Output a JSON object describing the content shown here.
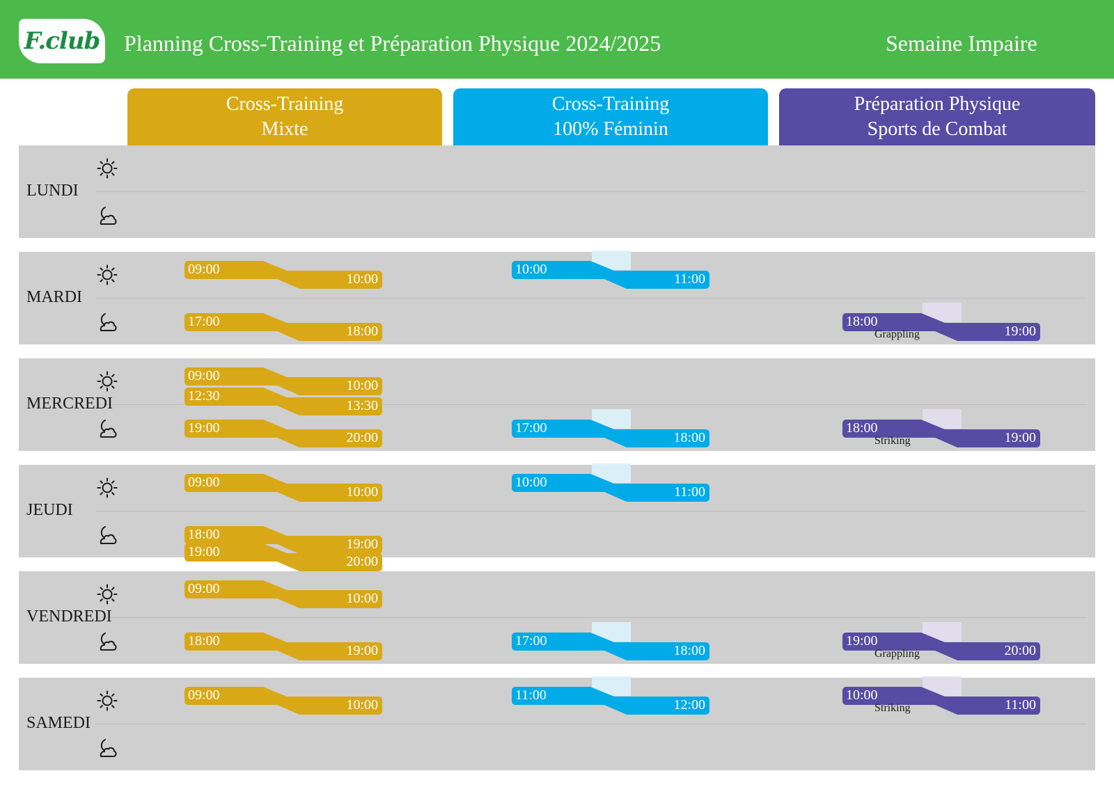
{
  "header": {
    "logo_text": "F.club",
    "title": "Planning Cross-Training et Préparation Physique 2024/2025",
    "week": "Semaine Impaire"
  },
  "columns": [
    {
      "line1": "Cross-Training",
      "line2": "Mixte",
      "color": "#d9a816"
    },
    {
      "line1": "Cross-Training",
      "line2": "100% Féminin",
      "color": "#00abe7"
    },
    {
      "line1": "Préparation Physique",
      "line2": "Sports de Combat",
      "color": "#574ba3"
    }
  ],
  "days": [
    {
      "name": "LUNDI",
      "slots": []
    },
    {
      "name": "MARDI",
      "slots": [
        {
          "col": 0,
          "period": "am",
          "start": "09:00",
          "end": "10:00"
        },
        {
          "col": 1,
          "period": "am",
          "start": "10:00",
          "end": "11:00"
        },
        {
          "col": 0,
          "period": "pm",
          "start": "17:00",
          "end": "18:00"
        },
        {
          "col": 2,
          "period": "pm",
          "start": "18:00",
          "end": "19:00",
          "label": "Grappling"
        }
      ]
    },
    {
      "name": "MERCREDI",
      "slots": [
        {
          "col": 0,
          "period": "am",
          "start": "09:00",
          "end": "10:00"
        },
        {
          "col": 0,
          "period": "am2",
          "start": "12:30",
          "end": "13:30"
        },
        {
          "col": 0,
          "period": "pm",
          "start": "19:00",
          "end": "20:00"
        },
        {
          "col": 1,
          "period": "pm",
          "start": "17:00",
          "end": "18:00"
        },
        {
          "col": 2,
          "period": "pm",
          "start": "18:00",
          "end": "19:00",
          "label": "Striking"
        }
      ]
    },
    {
      "name": "JEUDI",
      "slots": [
        {
          "col": 0,
          "period": "am",
          "start": "09:00",
          "end": "10:00"
        },
        {
          "col": 1,
          "period": "am",
          "start": "10:00",
          "end": "11:00"
        },
        {
          "col": 0,
          "period": "pm",
          "start": "18:00",
          "end": "19:00"
        },
        {
          "col": 0,
          "period": "pm2",
          "start": "19:00",
          "end": "20:00"
        }
      ]
    },
    {
      "name": "VENDREDI",
      "slots": [
        {
          "col": 0,
          "period": "am",
          "start": "09:00",
          "end": "10:00"
        },
        {
          "col": 0,
          "period": "pm",
          "start": "18:00",
          "end": "19:00"
        },
        {
          "col": 1,
          "period": "pm",
          "start": "17:00",
          "end": "18:00"
        },
        {
          "col": 2,
          "period": "pm",
          "start": "19:00",
          "end": "20:00",
          "label": "Grappling"
        }
      ]
    },
    {
      "name": "SAMEDI",
      "slots": [
        {
          "col": 0,
          "period": "am",
          "start": "09:00",
          "end": "10:00"
        },
        {
          "col": 1,
          "period": "am",
          "start": "11:00",
          "end": "12:00"
        },
        {
          "col": 2,
          "period": "am",
          "start": "10:00",
          "end": "11:00",
          "label": "Striking"
        }
      ]
    }
  ],
  "icons": {
    "morning": "sun-icon",
    "evening": "moon-cloud-icon"
  }
}
